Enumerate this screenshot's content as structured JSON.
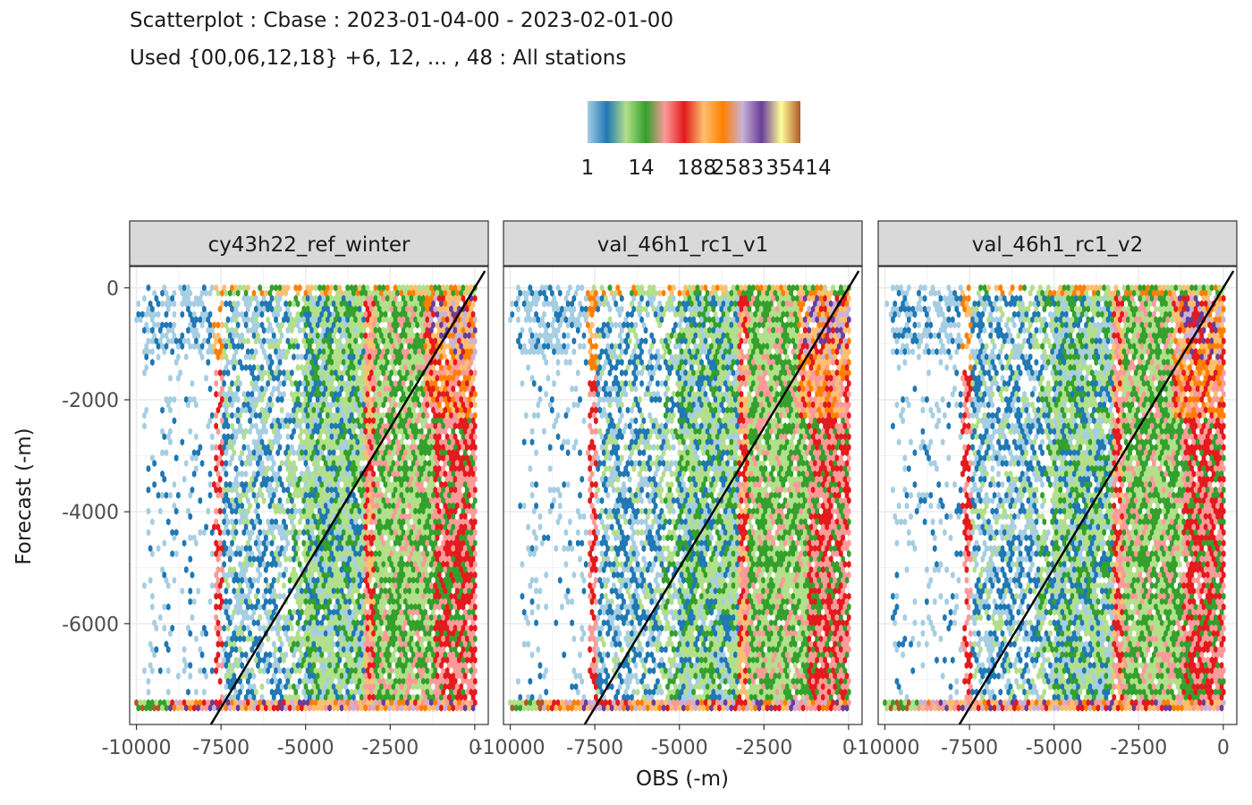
{
  "chart_data": {
    "type": "heatmap",
    "subtype": "hexbin-scatter",
    "title": "Scatterplot : Cbase : 2023-01-04-00 - 2023-02-01-00",
    "subtitle": "Used {00,06,12,18} +6, 12, ... , 48 : All stations",
    "xlabel": "OBS (-m)",
    "ylabel": "Forecast (-m)",
    "xlim": [
      -10200,
      400
    ],
    "ylim": [
      -7800,
      380
    ],
    "x_ticks": [
      -10000,
      -7500,
      -5000,
      -2500,
      0
    ],
    "x_tick_labels": [
      "-10000",
      "-7500",
      "-5000",
      "-2500",
      "0"
    ],
    "y_ticks": [
      0,
      -2000,
      -4000,
      -6000
    ],
    "y_tick_labels": [
      "0",
      "-2000",
      "-4000",
      "-6000"
    ],
    "grid": true,
    "legend": {
      "position": "top",
      "type": "color-scale",
      "labels": [
        "1",
        "14",
        "188",
        "2583",
        "35414"
      ],
      "colors": [
        "#a6cee3",
        "#1f78b4",
        "#b2df8a",
        "#33a02c",
        "#fb9a99",
        "#e31a1c",
        "#fdbf6f",
        "#ff7f00",
        "#cab2d6",
        "#6a3d9a",
        "#ffff99",
        "#b15928"
      ]
    },
    "reference_line": {
      "slope": 1,
      "intercept": 0,
      "color": "#000000"
    },
    "panels": [
      {
        "name": "cy43h22_ref_winter"
      },
      {
        "name": "val_46h1_rc1_v1"
      },
      {
        "name": "val_46h1_rc1_v2"
      }
    ]
  }
}
